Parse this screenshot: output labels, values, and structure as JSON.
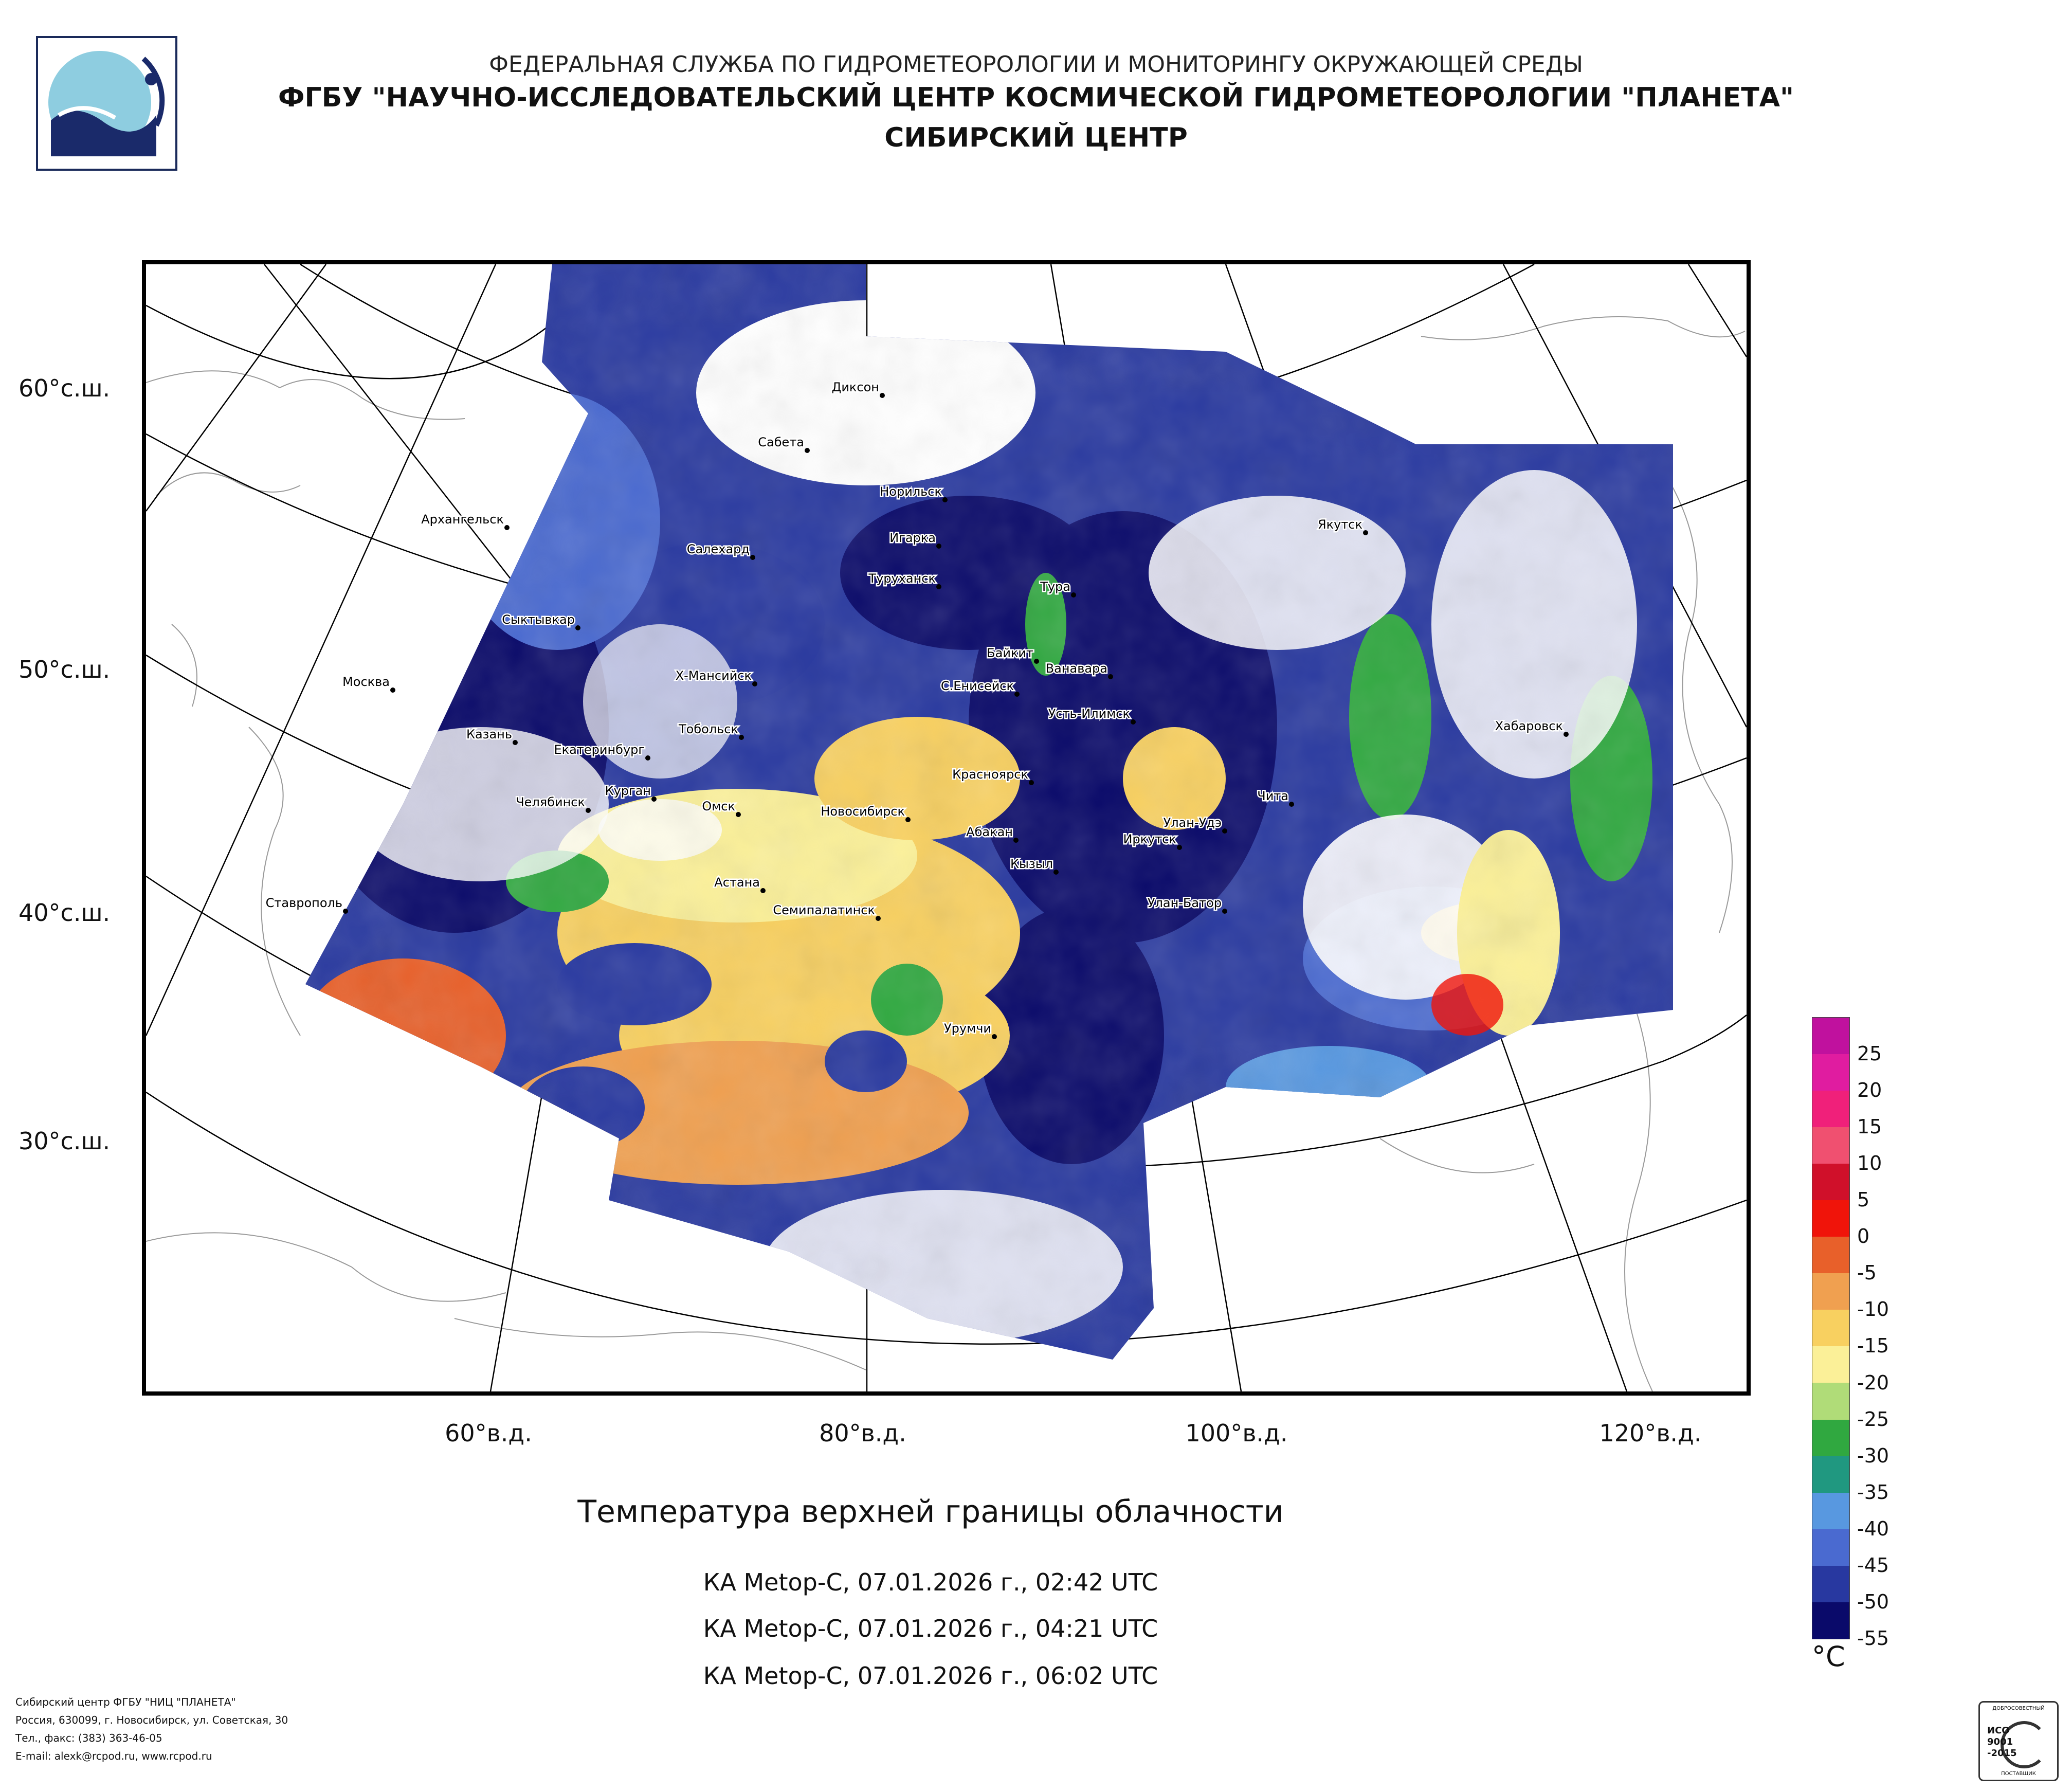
{
  "header": {
    "line1": "ФЕДЕРАЛЬНАЯ СЛУЖБА ПО ГИДРОМЕТЕОРОЛОГИИ И МОНИТОРИНГУ ОКРУЖАЮЩЕЙ СРЕДЫ",
    "line2": "ФГБУ \"НАУЧНО-ИССЛЕДОВАТЕЛЬСКИЙ ЦЕНТР КОСМИЧЕСКОЙ ГИДРОМЕТЕОРОЛОГИИ \"ПЛАНЕТА\"",
    "line3": "СИБИРСКИЙ ЦЕНТР"
  },
  "lat_labels": [
    "60°с.ш.",
    "50°с.ш.",
    "40°с.ш.",
    "30°с.ш."
  ],
  "lon_labels": [
    "60°в.д.",
    "80°в.д.",
    "100°в.д.",
    "120°в.д."
  ],
  "title": "Температура верхней границы облачности",
  "passes": [
    "КА Metop-C, 07.01.2026 г., 02:42 UTC",
    "КА Metop-C, 07.01.2026 г., 04:21 UTC",
    "КА Metop-C, 07.01.2026 г., 06:02 UTC"
  ],
  "legend": {
    "unit": "°C",
    "ticks": [
      "25",
      "20",
      "15",
      "10",
      "5",
      "0",
      "-5",
      "-10",
      "-15",
      "-20",
      "-25",
      "-30",
      "-35",
      "-40",
      "-45",
      "-50",
      "-55"
    ],
    "colors": [
      "#c0119e",
      "#e01ca0",
      "#f0207a",
      "#f05070",
      "#d0102a",
      "#f0140a",
      "#e8602a",
      "#f0a050",
      "#f8d060",
      "#fbf098",
      "#b0dc78",
      "#30a840",
      "#209880",
      "#5898e0",
      "#4a6ad0",
      "#2838a0",
      "#0a0a6a"
    ]
  },
  "cities": [
    {
      "name": "Диксон"
    },
    {
      "name": "Сабета"
    },
    {
      "name": "Норильск"
    },
    {
      "name": "Архангельск"
    },
    {
      "name": "Игарка"
    },
    {
      "name": "Салехард"
    },
    {
      "name": "Туруханск"
    },
    {
      "name": "Якутск"
    },
    {
      "name": "Тура"
    },
    {
      "name": "Сыктывкар"
    },
    {
      "name": "Байкит"
    },
    {
      "name": "Ванавара"
    },
    {
      "name": "Москва"
    },
    {
      "name": "Х-Мансийск"
    },
    {
      "name": "С.Енисейск"
    },
    {
      "name": "Усть-Илимск"
    },
    {
      "name": "Хабаровск"
    },
    {
      "name": "Казань"
    },
    {
      "name": "Тобольск"
    },
    {
      "name": "Екатеринбург"
    },
    {
      "name": "Красноярск"
    },
    {
      "name": "Челябинск"
    },
    {
      "name": "Курган"
    },
    {
      "name": "Омск"
    },
    {
      "name": "Чита"
    },
    {
      "name": "Новосибирск"
    },
    {
      "name": "Улан-Удэ"
    },
    {
      "name": "Абакан"
    },
    {
      "name": "Иркутск"
    },
    {
      "name": "Кызыл"
    },
    {
      "name": "Астана"
    },
    {
      "name": "Ставрополь"
    },
    {
      "name": "Улан-Батор"
    },
    {
      "name": "Семипалатинск"
    },
    {
      "name": "Урумчи"
    }
  ],
  "footer": {
    "line1": "Сибирский центр ФГБУ \"НИЦ \"ПЛАНЕТА\"",
    "line2": "Россия, 630099, г. Новосибирск, ул. Советская, 30",
    "line3": "Тел., факс: (383) 363-46-05",
    "line4": "E-mail: alexk@rcpod.ru, www.rcpod.ru"
  },
  "iso_badge": {
    "top": "ДОБРОСОВЕСТНЫЙ",
    "line1": "ИСО",
    "line2": "9001",
    "line3": "-2015",
    "bottom": "ПОСТАВЩИК"
  }
}
